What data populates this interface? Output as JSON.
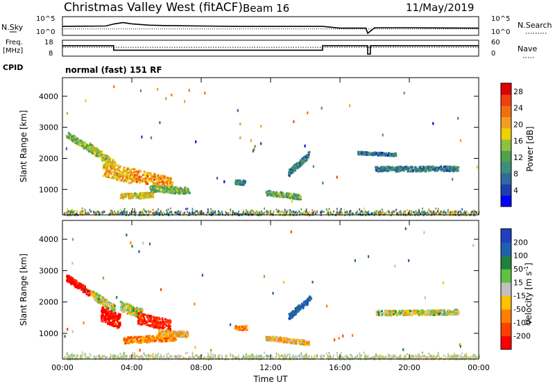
{
  "header": {
    "station": "Christmas Valley West (fitACF)",
    "beam": "Beam 16",
    "date": "11/May/2019"
  },
  "left_labels": {
    "nsky": "N.Sky",
    "freq_line1": "Freq.",
    "freq_line2": "[MHz]",
    "cpid": "CPID",
    "cpid_value": "normal (fast) 151 RF"
  },
  "right_labels": {
    "nsearch": "N.Search",
    "nave": "Nave"
  },
  "colors": {
    "ground_scatter": "#c0c0c0",
    "power_scale": [
      "#0000ff",
      "#1e3fb0",
      "#2f6aa0",
      "#3c8f78",
      "#4fa050",
      "#90c040",
      "#f0d000",
      "#f0a020",
      "#f07010",
      "#f04010",
      "#e00000"
    ],
    "velocity_scale": [
      "#ff0000",
      "#ff4000",
      "#ff8000",
      "#ffc000",
      "#c0c0c0",
      "#60c040",
      "#208040",
      "#2060b0",
      "#2040c0"
    ]
  },
  "chart_data": [
    {
      "type": "line",
      "name": "noise-panel",
      "yticks": [
        "10^5",
        "10^0"
      ],
      "yticks_right": [
        "10^5",
        "10^0"
      ],
      "series": [
        {
          "name": "N.Sky",
          "x": [
            0,
            2.5,
            3,
            3.5,
            4,
            5,
            6,
            8,
            10,
            12,
            14,
            15,
            16,
            17.5,
            17.6,
            18,
            20,
            24
          ],
          "y": [
            0.3,
            0.35,
            0.6,
            0.75,
            0.6,
            0.45,
            0.4,
            0.35,
            0.3,
            0.3,
            0.3,
            0.3,
            0.1,
            0.1,
            -0.5,
            0.15,
            0.15,
            0.1
          ]
        },
        {
          "name": "N.Search",
          "x": [
            0,
            24
          ],
          "y": [
            0.0,
            0.0
          ]
        }
      ]
    },
    {
      "type": "line",
      "name": "freq-panel",
      "yticks_left": [
        18,
        8
      ],
      "yticks_right": [
        60,
        0
      ],
      "series": [
        {
          "name": "Freq",
          "x": [
            0,
            2.95,
            2.95,
            15.0,
            15.0,
            17.6,
            17.6,
            17.75,
            17.75,
            24
          ],
          "y": [
            14.5,
            14.5,
            10.0,
            10.0,
            14.5,
            14.5,
            6,
            6,
            14.5,
            14.5
          ]
        },
        {
          "name": "Nave",
          "x": [
            0,
            24
          ],
          "y": [
            13,
            13
          ]
        }
      ]
    },
    {
      "type": "heatmap",
      "name": "power-panel",
      "xlabel": "",
      "ylabel": "Slant Range [km]",
      "yticks": [
        1000,
        2000,
        3000,
        4000
      ],
      "ylim": [
        180,
        4600
      ],
      "xlim": [
        0,
        24
      ],
      "colorbar": {
        "label": "Power [dB]",
        "ticks": [
          4,
          8,
          12,
          16,
          20,
          24,
          28
        ],
        "range": [
          0,
          30
        ]
      },
      "blobs": [
        {
          "x0": 0.2,
          "x1": 1.5,
          "r0": 2800,
          "r1": 2350,
          "w": 130,
          "v": 14
        },
        {
          "x0": 1.5,
          "x1": 3.0,
          "r0": 2400,
          "r1": 1800,
          "w": 180,
          "v": 16
        },
        {
          "x0": 2.3,
          "x1": 4.0,
          "r0": 1700,
          "r1": 1450,
          "w": 300,
          "v": 20
        },
        {
          "x0": 4.0,
          "x1": 6.3,
          "r0": 1500,
          "r1": 1200,
          "w": 250,
          "v": 22
        },
        {
          "x0": 3.3,
          "x1": 5.2,
          "r0": 800,
          "r1": 850,
          "w": 110,
          "v": 18
        },
        {
          "x0": 5.0,
          "x1": 7.3,
          "r0": 1050,
          "r1": 980,
          "w": 130,
          "v": 12
        },
        {
          "x0": 9.9,
          "x1": 10.5,
          "r0": 1250,
          "r1": 1250,
          "w": 90,
          "v": 8
        },
        {
          "x0": 11.7,
          "x1": 13.7,
          "r0": 920,
          "r1": 780,
          "w": 100,
          "v": 12
        },
        {
          "x0": 13.0,
          "x1": 14.2,
          "r0": 1550,
          "r1": 2150,
          "w": 130,
          "v": 8
        },
        {
          "x0": 17.0,
          "x1": 19.2,
          "r0": 2200,
          "r1": 2150,
          "w": 60,
          "v": 6
        },
        {
          "x0": 18.0,
          "x1": 22.8,
          "r0": 1680,
          "r1": 1700,
          "w": 100,
          "v": 8
        }
      ],
      "ground_band": {
        "r0": 200,
        "r1": 420
      }
    },
    {
      "type": "heatmap",
      "name": "velocity-panel",
      "xlabel": "Time UT",
      "ylabel": "Slant Range [km]",
      "xticks": [
        "00:00",
        "04:00",
        "08:00",
        "12:00",
        "16:00",
        "20:00",
        "00:00"
      ],
      "yticks": [
        1000,
        2000,
        3000,
        4000
      ],
      "ylim": [
        180,
        4600
      ],
      "xlim": [
        0,
        24
      ],
      "colorbar": {
        "label": "Velocity [m s^-1]",
        "ticks": [
          -200,
          -100,
          -50,
          -15,
          15,
          50,
          100,
          200
        ]
      },
      "blobs": [
        {
          "x0": 0.2,
          "x1": 1.6,
          "r0": 2800,
          "r1": 2300,
          "w": 140,
          "v": -250
        },
        {
          "x0": 1.6,
          "x1": 3.0,
          "r0": 2300,
          "r1": 1800,
          "w": 160,
          "v": 0
        },
        {
          "x0": 2.2,
          "x1": 3.3,
          "r0": 1650,
          "r1": 1400,
          "w": 300,
          "v": -230
        },
        {
          "x0": 3.3,
          "x1": 4.6,
          "r0": 1900,
          "r1": 1650,
          "w": 200,
          "v": 0
        },
        {
          "x0": 4.3,
          "x1": 6.2,
          "r0": 1500,
          "r1": 1280,
          "w": 220,
          "v": -200
        },
        {
          "x0": 3.5,
          "x1": 6.5,
          "r0": 800,
          "r1": 900,
          "w": 130,
          "v": -80
        },
        {
          "x0": 5.5,
          "x1": 7.2,
          "r0": 1050,
          "r1": 1000,
          "w": 120,
          "v": -40
        },
        {
          "x0": 9.9,
          "x1": 10.6,
          "r0": 1200,
          "r1": 1200,
          "w": 80,
          "v": -60
        },
        {
          "x0": 11.7,
          "x1": 14.2,
          "r0": 880,
          "r1": 720,
          "w": 90,
          "v": -40
        },
        {
          "x0": 13.0,
          "x1": 14.3,
          "r0": 1550,
          "r1": 2150,
          "w": 130,
          "v": 150
        },
        {
          "x0": 18.0,
          "x1": 22.8,
          "r0": 1680,
          "r1": 1700,
          "w": 100,
          "v": 0
        }
      ],
      "ground_band": {
        "r0": 200,
        "r1": 420
      }
    }
  ]
}
